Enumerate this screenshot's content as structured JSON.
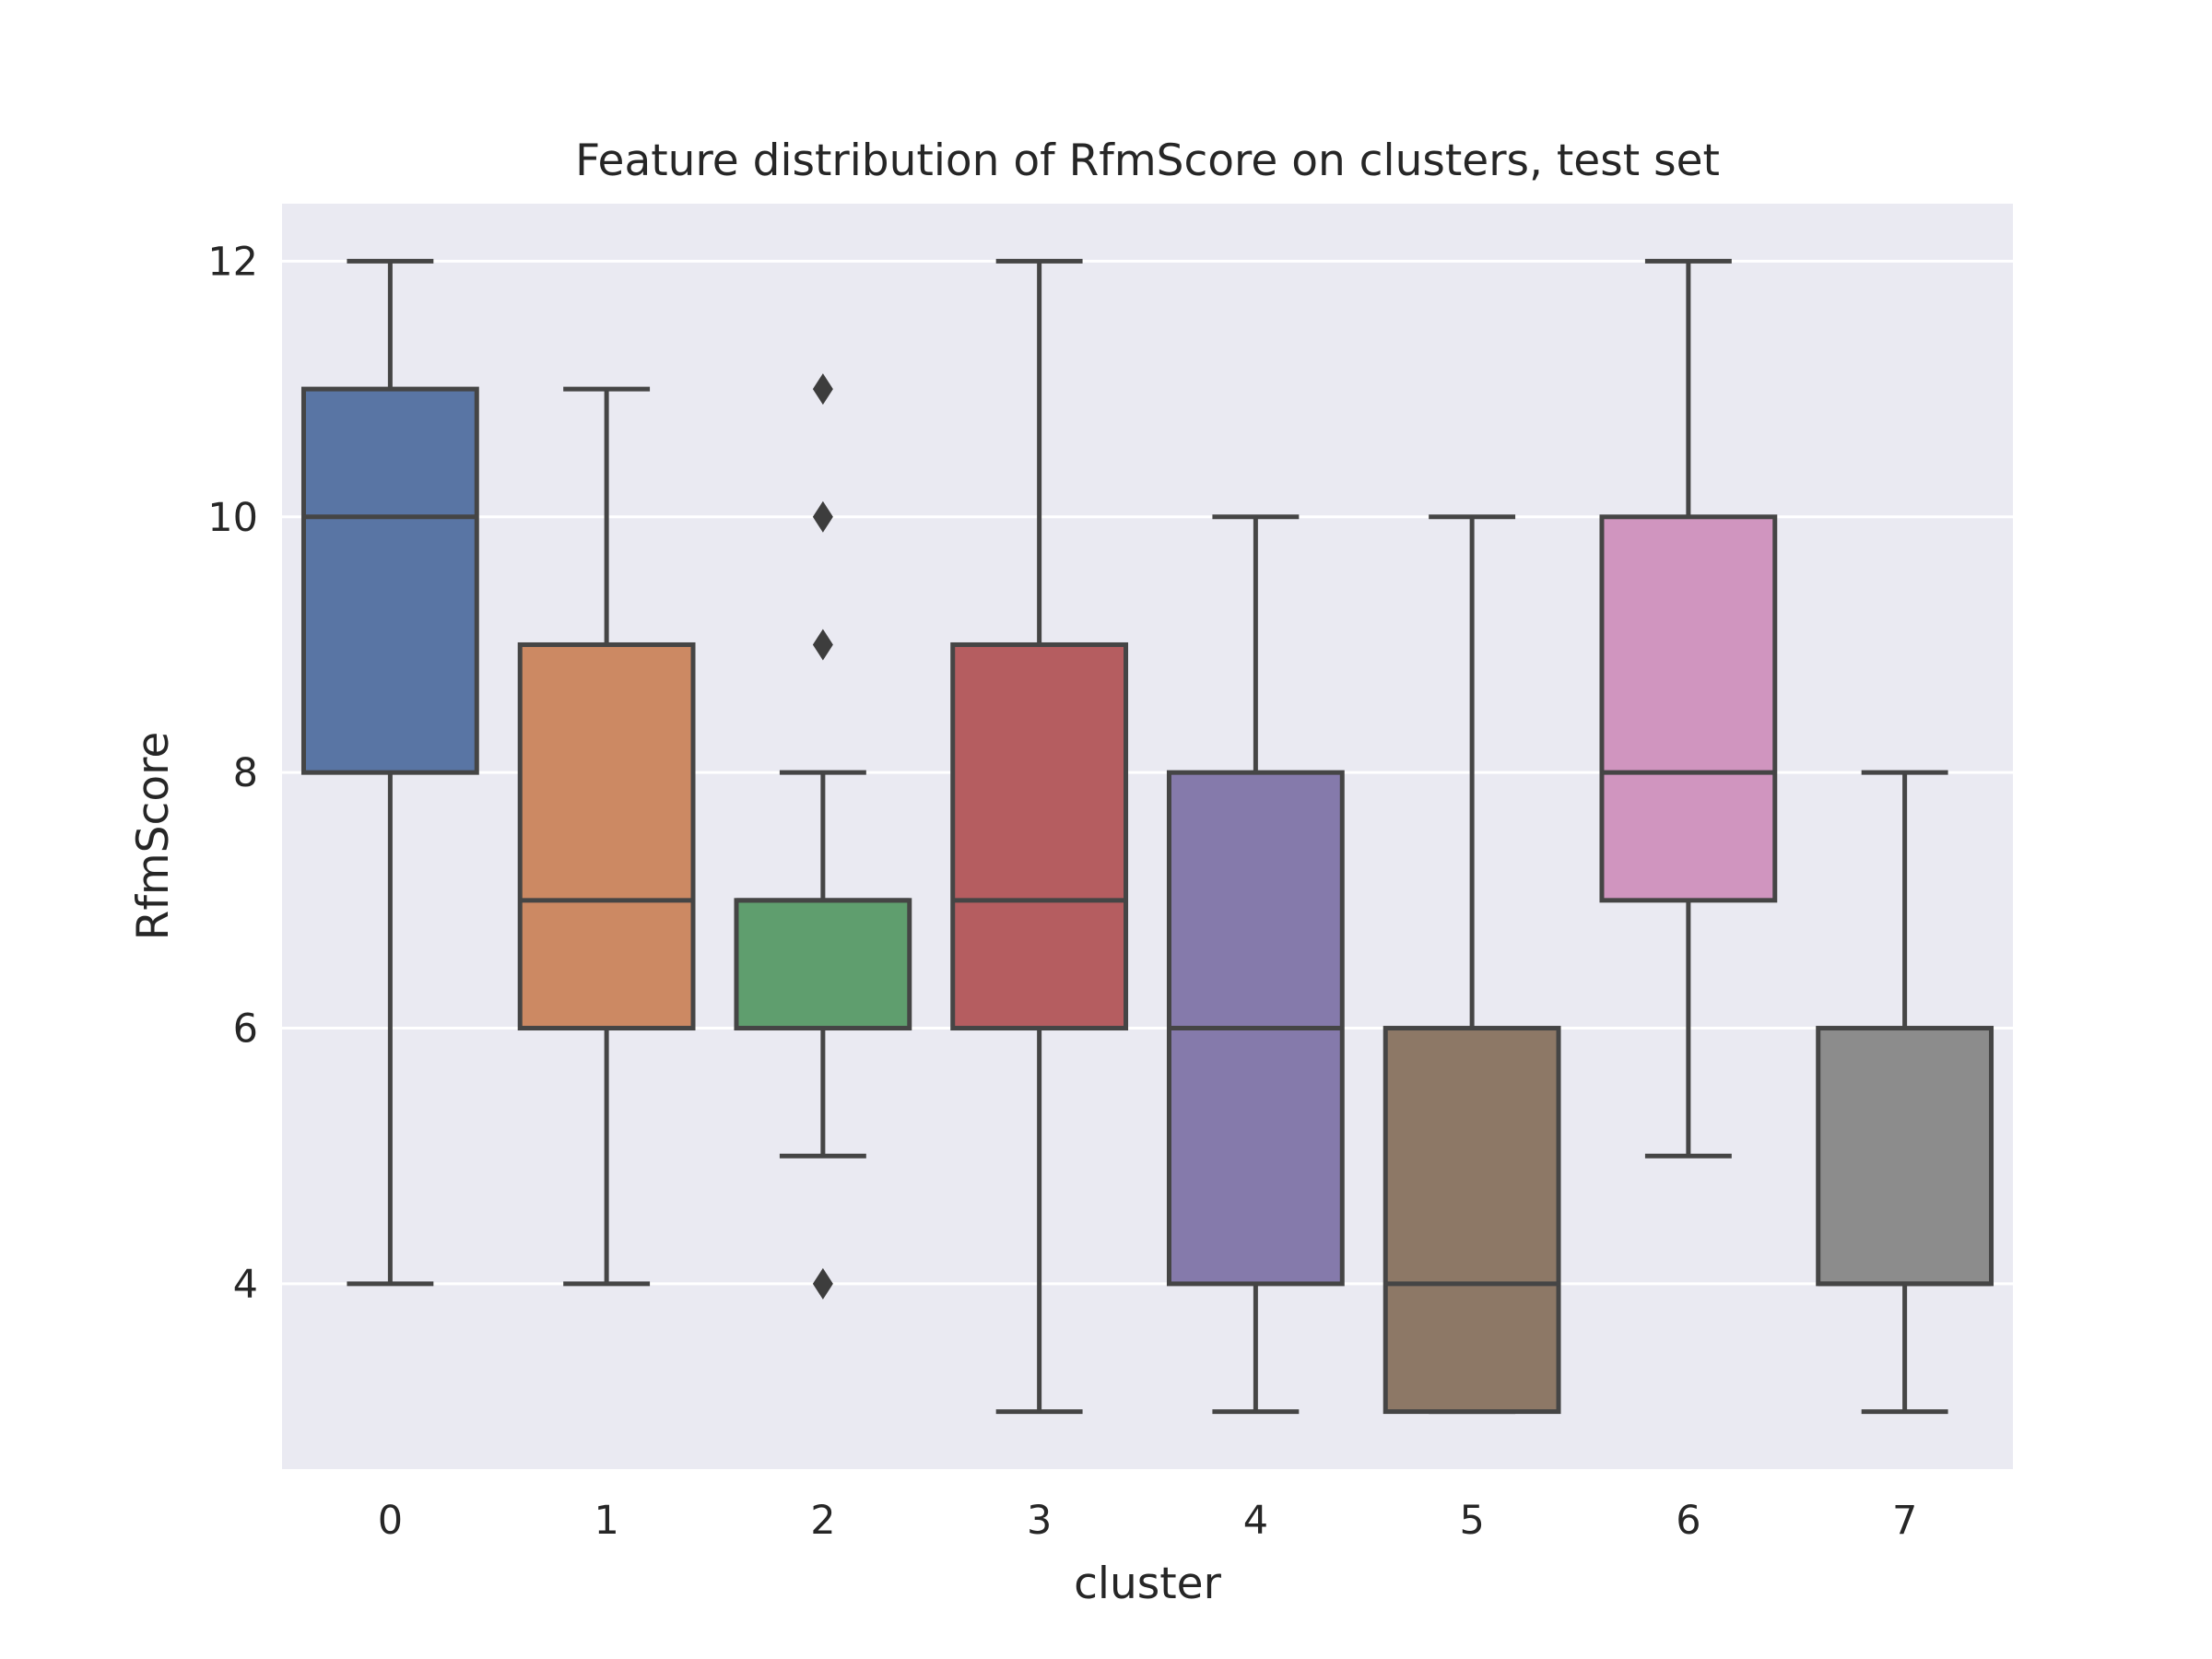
{
  "chart_data": {
    "type": "box",
    "title": "Feature distribution of RfmScore on clusters, test set",
    "xlabel": "cluster",
    "ylabel": "RfmScore",
    "categories": [
      "0",
      "1",
      "2",
      "3",
      "4",
      "5",
      "6",
      "7"
    ],
    "ylim": [
      2.55,
      12.45
    ],
    "yticks": [
      4,
      6,
      8,
      10,
      12
    ],
    "grid": true,
    "background": "#eaeaf2",
    "colors": [
      "#5975a4",
      "#cc8963",
      "#5f9e6e",
      "#b55d60",
      "#857aab",
      "#8d7866",
      "#d095bf",
      "#8c8c8c"
    ],
    "boxes": [
      {
        "cluster": "0",
        "whisker_low": 4,
        "q1": 8,
        "median": 10,
        "q3": 11,
        "whisker_high": 12,
        "outliers": []
      },
      {
        "cluster": "1",
        "whisker_low": 4,
        "q1": 6,
        "median": 7,
        "q3": 9,
        "whisker_high": 11,
        "outliers": []
      },
      {
        "cluster": "2",
        "whisker_low": 5,
        "q1": 6,
        "median": 7,
        "q3": 7,
        "whisker_high": 8,
        "outliers": [
          11,
          10,
          9,
          4
        ]
      },
      {
        "cluster": "3",
        "whisker_low": 3,
        "q1": 6,
        "median": 7,
        "q3": 9,
        "whisker_high": 12,
        "outliers": []
      },
      {
        "cluster": "4",
        "whisker_low": 3,
        "q1": 4,
        "median": 6,
        "q3": 8,
        "whisker_high": 10,
        "outliers": []
      },
      {
        "cluster": "5",
        "whisker_low": 3,
        "q1": 3,
        "median": 4,
        "q3": 6,
        "whisker_high": 10,
        "outliers": []
      },
      {
        "cluster": "6",
        "whisker_low": 5,
        "q1": 7,
        "median": 8,
        "q3": 10,
        "whisker_high": 12,
        "outliers": []
      },
      {
        "cluster": "7",
        "whisker_low": 3,
        "q1": 4,
        "median": 4,
        "q3": 6,
        "whisker_high": 8,
        "outliers": []
      }
    ]
  }
}
